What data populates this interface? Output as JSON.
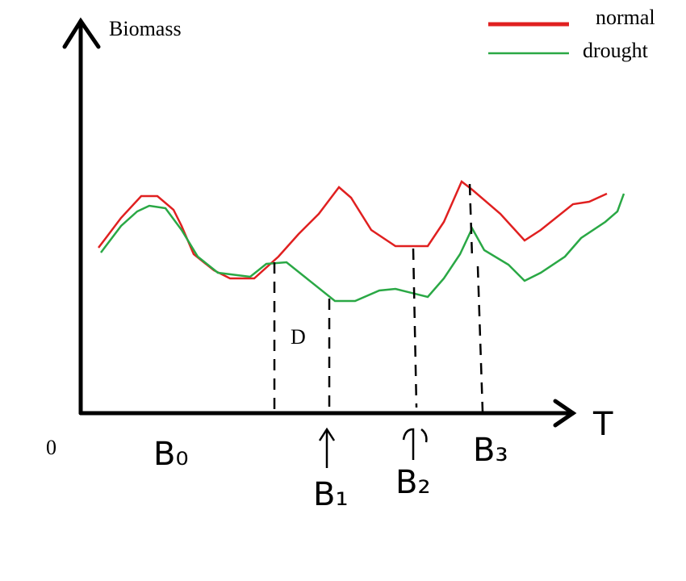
{
  "axes": {
    "y_label": "Biomass",
    "x_label": "T",
    "origin": "0"
  },
  "legend": [
    {
      "label": "normal"
    },
    {
      "label": "drought"
    }
  ],
  "annotations": {
    "region": "D",
    "points": [
      "B₀",
      "B₁",
      "B₂",
      "B₃"
    ]
  }
}
